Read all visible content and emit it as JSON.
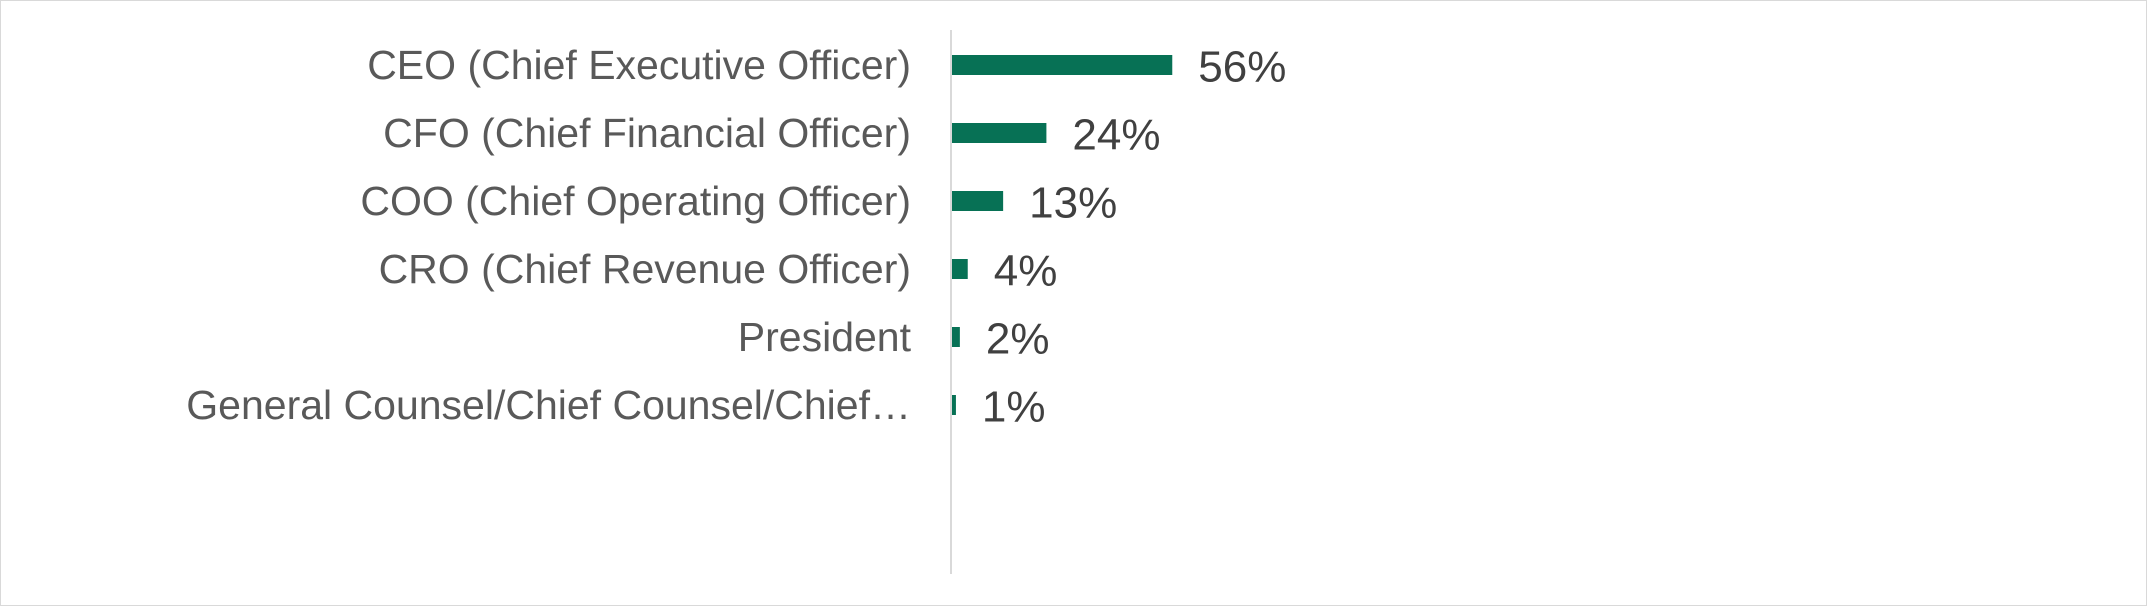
{
  "chart_data": {
    "type": "bar",
    "orientation": "horizontal",
    "title": "",
    "xlabel": "",
    "ylabel": "",
    "categories": [
      "CEO (Chief Executive Officer)",
      "CFO (Chief Financial Officer)",
      "COO (Chief Operating Officer)",
      "CRO (Chief Revenue Officer)",
      "President",
      "General Counsel/Chief Counsel/Chief…"
    ],
    "values": [
      56,
      24,
      13,
      4,
      2,
      1
    ],
    "data_labels": [
      "56%",
      "24%",
      "13%",
      "4%",
      "2%",
      "1%"
    ],
    "xlim": [
      0,
      300
    ],
    "grid": false,
    "legend": "none",
    "bar_color": "#077155",
    "axis_color": "#d9d9d9"
  }
}
